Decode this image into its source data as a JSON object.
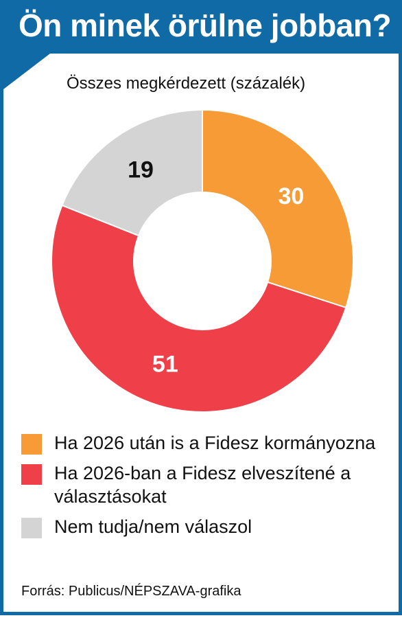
{
  "header": {
    "title": "Ön minek örülne jobban?",
    "subtitle": "Összes megkérdezett (százalék)"
  },
  "colors": {
    "brand": "#0f6aa6",
    "orange": "#f79b36",
    "red": "#ef3f48",
    "gray": "#d4d4d4"
  },
  "chart_data": {
    "type": "pie",
    "variant": "donut",
    "title": "Ön minek örülne jobban?",
    "subtitle": "Összes megkérdezett (százalék)",
    "legend_position": "bottom",
    "slices": [
      {
        "label": "Ha 2026 után is a Fidesz kormányozna",
        "value": 30,
        "color": "#f79b36",
        "label_color": "#ffffff"
      },
      {
        "label": "Ha 2026-ban a Fidesz elveszítené a választásokat",
        "value": 51,
        "color": "#ef3f48",
        "label_color": "#ffffff"
      },
      {
        "label": "Nem tudja/nem válaszol",
        "value": 19,
        "color": "#d4d4d4",
        "label_color": "#111111"
      }
    ]
  },
  "legend": [
    {
      "label": "Ha 2026 után is a Fidesz kormányozna"
    },
    {
      "label": "Ha 2026-ban a Fidesz elveszítené a választásokat"
    },
    {
      "label": "Nem tudja/nem válaszol"
    }
  ],
  "footer": {
    "source": "Forrás: Publicus/NÉPSZAVA-grafika"
  }
}
